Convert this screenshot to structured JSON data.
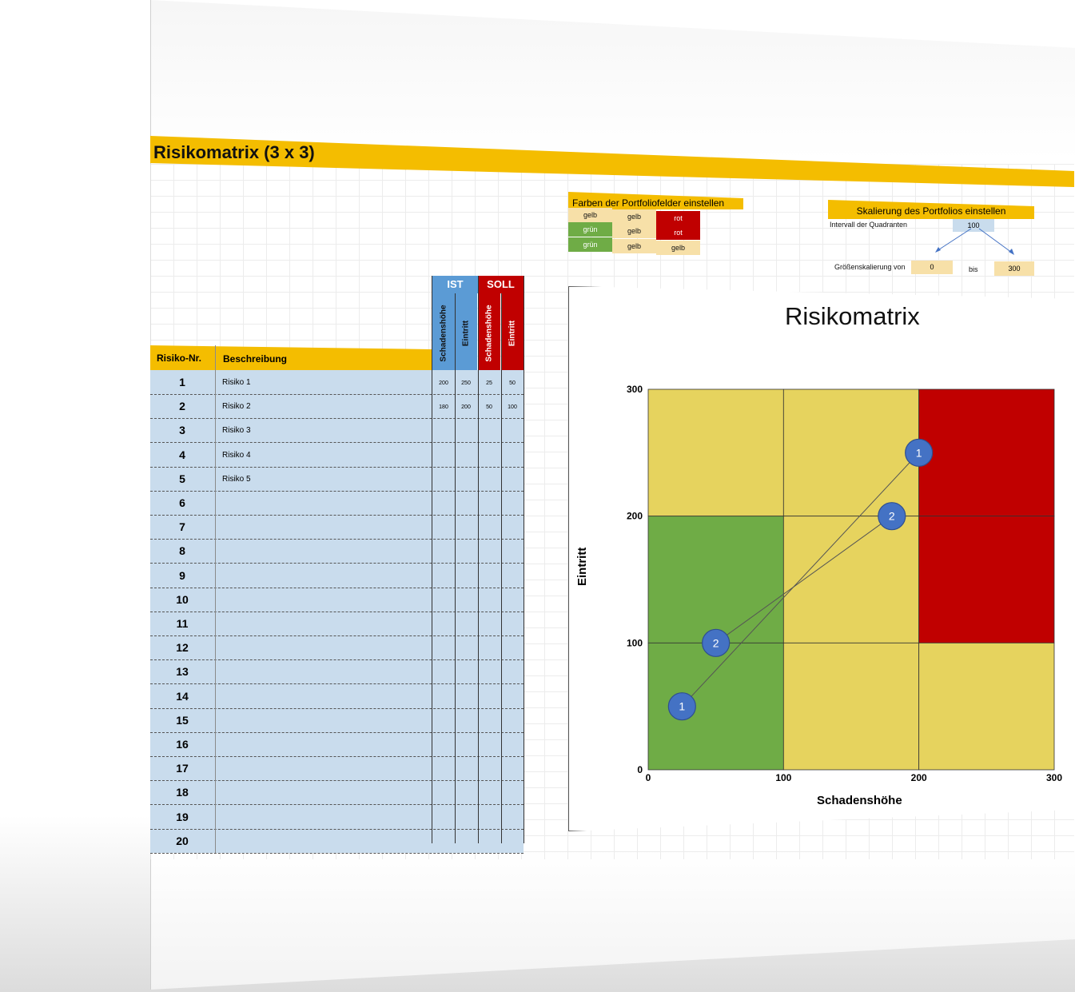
{
  "sheet": {
    "title": "Risikomatrix (3 x 3)",
    "table": {
      "col_nr": "Risiko-Nr.",
      "col_desc": "Beschreibung",
      "group_ist": "IST",
      "group_soll": "SOLL",
      "sub_schaden": "Schadenshöhe",
      "sub_eintritt": "Eintritt",
      "rows": [
        {
          "nr": "1",
          "desc": "Risiko 1",
          "ist_s": "200",
          "ist_e": "250",
          "soll_s": "25",
          "soll_e": "50"
        },
        {
          "nr": "2",
          "desc": "Risiko 2",
          "ist_s": "180",
          "ist_e": "200",
          "soll_s": "50",
          "soll_e": "100"
        },
        {
          "nr": "3",
          "desc": "Risiko 3",
          "ist_s": "",
          "ist_e": "",
          "soll_s": "",
          "soll_e": ""
        },
        {
          "nr": "4",
          "desc": "Risiko 4",
          "ist_s": "",
          "ist_e": "",
          "soll_s": "",
          "soll_e": ""
        },
        {
          "nr": "5",
          "desc": "Risiko 5",
          "ist_s": "",
          "ist_e": "",
          "soll_s": "",
          "soll_e": ""
        },
        {
          "nr": "6",
          "desc": "",
          "ist_s": "",
          "ist_e": "",
          "soll_s": "",
          "soll_e": ""
        },
        {
          "nr": "7",
          "desc": "",
          "ist_s": "",
          "ist_e": "",
          "soll_s": "",
          "soll_e": ""
        },
        {
          "nr": "8",
          "desc": "",
          "ist_s": "",
          "ist_e": "",
          "soll_s": "",
          "soll_e": ""
        },
        {
          "nr": "9",
          "desc": "",
          "ist_s": "",
          "ist_e": "",
          "soll_s": "",
          "soll_e": ""
        },
        {
          "nr": "10",
          "desc": "",
          "ist_s": "",
          "ist_e": "",
          "soll_s": "",
          "soll_e": ""
        },
        {
          "nr": "11",
          "desc": "",
          "ist_s": "",
          "ist_e": "",
          "soll_s": "",
          "soll_e": ""
        },
        {
          "nr": "12",
          "desc": "",
          "ist_s": "",
          "ist_e": "",
          "soll_s": "",
          "soll_e": ""
        },
        {
          "nr": "13",
          "desc": "",
          "ist_s": "",
          "ist_e": "",
          "soll_s": "",
          "soll_e": ""
        },
        {
          "nr": "14",
          "desc": "",
          "ist_s": "",
          "ist_e": "",
          "soll_s": "",
          "soll_e": ""
        },
        {
          "nr": "15",
          "desc": "",
          "ist_s": "",
          "ist_e": "",
          "soll_s": "",
          "soll_e": ""
        },
        {
          "nr": "16",
          "desc": "",
          "ist_s": "",
          "ist_e": "",
          "soll_s": "",
          "soll_e": ""
        },
        {
          "nr": "17",
          "desc": "",
          "ist_s": "",
          "ist_e": "",
          "soll_s": "",
          "soll_e": ""
        },
        {
          "nr": "18",
          "desc": "",
          "ist_s": "",
          "ist_e": "",
          "soll_s": "",
          "soll_e": ""
        },
        {
          "nr": "19",
          "desc": "",
          "ist_s": "",
          "ist_e": "",
          "soll_s": "",
          "soll_e": ""
        },
        {
          "nr": "20",
          "desc": "",
          "ist_s": "",
          "ist_e": "",
          "soll_s": "",
          "soll_e": ""
        }
      ]
    },
    "farben": {
      "title": "Farben der Portfoliofelder einstellen",
      "cells": [
        [
          "gelb",
          "gelb",
          "rot"
        ],
        [
          "grün",
          "gelb",
          "rot"
        ],
        [
          "grün",
          "gelb",
          "gelb"
        ]
      ]
    },
    "skalierung": {
      "title": "Skalierung des Portfolios einstellen",
      "intervall_label": "Intervall der Quadranten",
      "intervall_value": "100",
      "groesse_label": "Größenskalierung von",
      "von_value": "0",
      "bis_label": "bis",
      "bis_value": "300"
    },
    "colors": {
      "gelb": "#e6d35e",
      "gruen": "#6fac46",
      "rot": "#c00000",
      "header_orange": "#f4bd00",
      "ist_blue": "#5b9bd5",
      "table_blue": "#c9dced",
      "bubble": "#4472c4"
    }
  },
  "chart_data": {
    "type": "scatter",
    "title": "Risikomatrix",
    "xlabel": "Schadenshöhe",
    "ylabel": "Eintritt",
    "xlim": [
      0,
      300
    ],
    "ylim": [
      0,
      300
    ],
    "x_ticks": [
      "0",
      "100",
      "200",
      "300"
    ],
    "y_ticks": [
      "0",
      "100",
      "200",
      "300"
    ],
    "quadrant_interval": 100,
    "quadrant_colors": [
      [
        "gelb",
        "gelb",
        "rot"
      ],
      [
        "grün",
        "gelb",
        "rot"
      ],
      [
        "grün",
        "gelb",
        "gelb"
      ]
    ],
    "points": [
      {
        "label": "1",
        "x": 200,
        "y": 250,
        "group": "IST"
      },
      {
        "label": "2",
        "x": 180,
        "y": 200,
        "group": "IST"
      },
      {
        "label": "1",
        "x": 25,
        "y": 50,
        "group": "SOLL"
      },
      {
        "label": "2",
        "x": 50,
        "y": 100,
        "group": "SOLL"
      }
    ],
    "connections": [
      [
        "1",
        "1"
      ],
      [
        "2",
        "2"
      ]
    ]
  }
}
